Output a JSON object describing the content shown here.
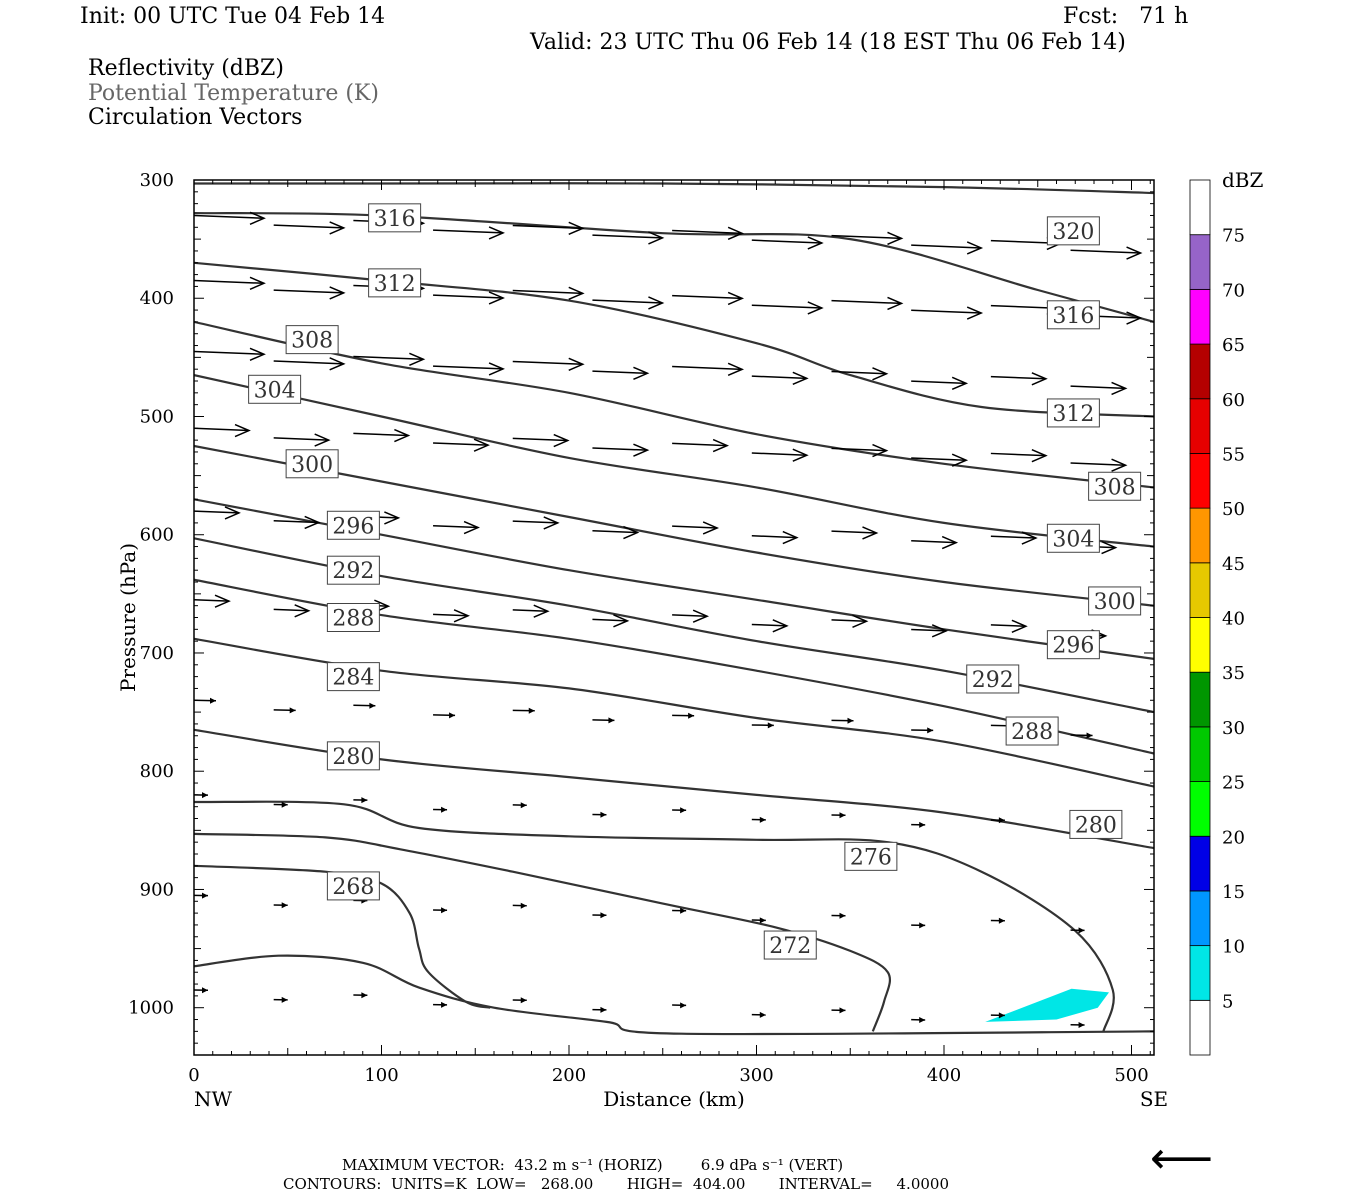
{
  "header": {
    "init": "Init: 00 UTC Tue 04 Feb 14",
    "fcst": "Fcst:   71 h",
    "valid": "Valid: 23 UTC Thu 06 Feb 14 (18 EST Thu 06 Feb 14)",
    "field1": "Reflectivity (dBZ)",
    "field2": "Potential Temperature (K)",
    "field3": "Circulation Vectors"
  },
  "footer": {
    "line1": "MAXIMUM VECTOR:  43.2 m s⁻¹ (HORIZ)        6.9 dPa s⁻¹ (VERT)",
    "line2": "CONTOURS:  UNITS=K  LOW=   268.00       HIGH=  404.00       INTERVAL=     4.0000"
  },
  "colors": {
    "contour": "#333333",
    "echo": "#00e6e6"
  },
  "chart_data": {
    "type": "cross-section",
    "xlabel": "Distance (km)",
    "ylabel": "Pressure (hPa)",
    "xlim": [
      0,
      512
    ],
    "ylim": [
      1040,
      300
    ],
    "xticks": [
      0,
      100,
      200,
      300,
      400,
      500
    ],
    "yticks": [
      300,
      400,
      500,
      600,
      700,
      800,
      900,
      1000
    ],
    "x_end_labels": {
      "left": "NW",
      "right": "SE"
    },
    "colorbar": {
      "title": "dBZ",
      "labels": [
        "5",
        "10",
        "15",
        "20",
        "25",
        "30",
        "35",
        "40",
        "45",
        "50",
        "55",
        "60",
        "65",
        "70",
        "75"
      ],
      "colors": [
        "#ffffff",
        "#00e6e6",
        "#0096ff",
        "#0000e6",
        "#00ff00",
        "#00c800",
        "#009600",
        "#ffff00",
        "#e6c800",
        "#ff9600",
        "#ff0000",
        "#e60000",
        "#b40000",
        "#ff00ff",
        "#9664c8",
        "#ffffff"
      ]
    },
    "contours": [
      {
        "label": "320",
        "pts": [
          [
            0,
            303
          ],
          [
            100,
            303
          ],
          [
            250,
            303
          ],
          [
            400,
            306
          ],
          [
            512,
            311
          ]
        ],
        "labels_at": [
          [
            469,
            343
          ]
        ]
      },
      {
        "label": "316",
        "pts": [
          [
            0,
            328
          ],
          [
            100,
            330
          ],
          [
            250,
            345
          ],
          [
            350,
            350
          ],
          [
            450,
            393
          ],
          [
            512,
            420
          ]
        ],
        "labels_at": [
          [
            107,
            332
          ],
          [
            469,
            414
          ]
        ]
      },
      {
        "label": "312",
        "pts": [
          [
            0,
            370
          ],
          [
            100,
            385
          ],
          [
            200,
            402
          ],
          [
            300,
            438
          ],
          [
            350,
            465
          ],
          [
            420,
            492
          ],
          [
            512,
            500
          ]
        ],
        "labels_at": [
          [
            107,
            387
          ],
          [
            469,
            497
          ]
        ]
      },
      {
        "label": "308",
        "pts": [
          [
            0,
            420
          ],
          [
            100,
            455
          ],
          [
            200,
            480
          ],
          [
            300,
            515
          ],
          [
            400,
            540
          ],
          [
            512,
            560
          ]
        ],
        "labels_at": [
          [
            63,
            435
          ],
          [
            491,
            559
          ]
        ]
      },
      {
        "label": "304",
        "pts": [
          [
            0,
            465
          ],
          [
            100,
            500
          ],
          [
            200,
            535
          ],
          [
            300,
            560
          ],
          [
            400,
            590
          ],
          [
            512,
            610
          ]
        ],
        "labels_at": [
          [
            43,
            477
          ],
          [
            469,
            603
          ]
        ]
      },
      {
        "label": "300",
        "pts": [
          [
            0,
            525
          ],
          [
            100,
            555
          ],
          [
            200,
            585
          ],
          [
            300,
            615
          ],
          [
            400,
            640
          ],
          [
            512,
            660
          ]
        ],
        "labels_at": [
          [
            63,
            540
          ],
          [
            491,
            656
          ]
        ]
      },
      {
        "label": "296",
        "pts": [
          [
            0,
            570
          ],
          [
            100,
            600
          ],
          [
            200,
            630
          ],
          [
            300,
            655
          ],
          [
            400,
            680
          ],
          [
            512,
            705
          ]
        ],
        "labels_at": [
          [
            85,
            592
          ],
          [
            469,
            693
          ]
        ]
      },
      {
        "label": "292",
        "pts": [
          [
            0,
            603
          ],
          [
            100,
            635
          ],
          [
            200,
            660
          ],
          [
            300,
            690
          ],
          [
            400,
            715
          ],
          [
            512,
            750
          ]
        ],
        "labels_at": [
          [
            85,
            630
          ],
          [
            426,
            722
          ]
        ]
      },
      {
        "label": "288",
        "pts": [
          [
            0,
            638
          ],
          [
            100,
            668
          ],
          [
            200,
            688
          ],
          [
            300,
            715
          ],
          [
            400,
            745
          ],
          [
            512,
            785
          ]
        ],
        "labels_at": [
          [
            85,
            670
          ],
          [
            447,
            766
          ]
        ]
      },
      {
        "label": "284",
        "pts": [
          [
            0,
            688
          ],
          [
            100,
            715
          ],
          [
            200,
            730
          ],
          [
            300,
            755
          ],
          [
            400,
            775
          ],
          [
            512,
            813
          ]
        ],
        "labels_at": [
          [
            85,
            720
          ],
          [
            0,
            0
          ]
        ]
      },
      {
        "label": "280",
        "pts": [
          [
            0,
            765
          ],
          [
            100,
            790
          ],
          [
            200,
            805
          ],
          [
            300,
            820
          ],
          [
            400,
            835
          ],
          [
            512,
            865
          ]
        ],
        "labels_at": [
          [
            85,
            787
          ],
          [
            481,
            845
          ]
        ]
      },
      {
        "label": "276",
        "pts": [
          [
            0,
            826
          ],
          [
            80,
            828
          ],
          [
            120,
            848
          ],
          [
            200,
            855
          ],
          [
            300,
            858
          ],
          [
            370,
            860
          ],
          [
            420,
            885
          ],
          [
            470,
            935
          ],
          [
            490,
            985
          ],
          [
            485,
            1020
          ]
        ],
        "labels_at": [
          [
            361,
            872
          ],
          [
            0,
            0
          ]
        ]
      },
      {
        "label": "272",
        "pts": [
          [
            0,
            853
          ],
          [
            70,
            856
          ],
          [
            110,
            866
          ],
          [
            170,
            885
          ],
          [
            250,
            912
          ],
          [
            310,
            932
          ],
          [
            350,
            952
          ],
          [
            370,
            970
          ],
          [
            368,
            995
          ],
          [
            362,
            1020
          ]
        ],
        "labels_at": [
          [
            318,
            947
          ],
          [
            0,
            0
          ]
        ]
      },
      {
        "label": "268",
        "pts": [
          [
            0,
            880
          ],
          [
            70,
            885
          ],
          [
            100,
            895
          ],
          [
            115,
            920
          ],
          [
            120,
            950
          ],
          [
            125,
            970
          ],
          [
            145,
            995
          ],
          [
            158,
            1000
          ]
        ],
        "labels_at": [
          [
            85,
            897
          ],
          [
            0,
            0
          ]
        ]
      },
      {
        "label": "",
        "pts": [
          [
            0,
            965
          ],
          [
            45,
            956
          ],
          [
            90,
            962
          ],
          [
            120,
            983
          ],
          [
            160,
            1000
          ],
          [
            220,
            1012
          ],
          [
            260,
            1022
          ],
          [
            512,
            1020
          ]
        ],
        "labels_at": []
      }
    ],
    "reflectivity_areas": [
      {
        "dbz": 5,
        "pts": [
          [
            422,
            1012
          ],
          [
            468,
            984
          ],
          [
            488,
            987
          ],
          [
            482,
            1000
          ],
          [
            460,
            1010
          ]
        ]
      }
    ],
    "max_vector_arrow": "⟵"
  }
}
